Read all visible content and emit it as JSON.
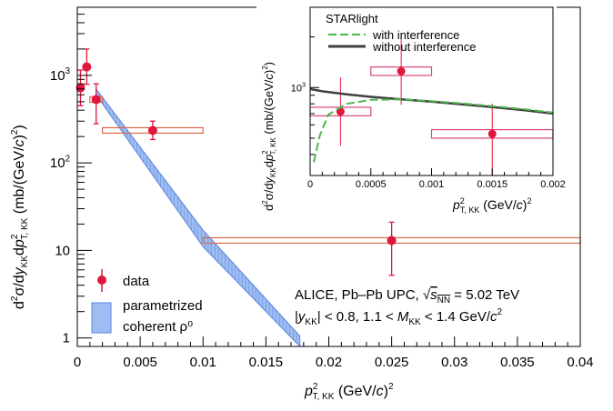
{
  "chart_data": [
    {
      "type": "scatter",
      "log_y": true,
      "xlim": [
        0,
        0.04
      ],
      "ylim": [
        0.8,
        6000
      ],
      "x_ticks": [
        "0",
        "0.005",
        "0.01",
        "0.015",
        "0.02",
        "0.025",
        "0.03",
        "0.035",
        "0.04"
      ],
      "y_ticks": [
        "1",
        "10",
        "10²",
        "10³"
      ],
      "xlabel": "p²T, KK (GeV/c)²",
      "ylabel": "d²σ/dyKKdp²T, KK (mb/(GeV/c)²)",
      "series": [
        {
          "name": "data",
          "color": "#e0163b",
          "points": [
            {
              "x": 0.00025,
              "y": 720,
              "xerr": 0.00025,
              "ylo": 450,
              "yhi": 1150
            },
            {
              "x": 0.00075,
              "y": 1250,
              "xerr": 0.00025,
              "ylo": 790,
              "yhi": 2000
            },
            {
              "x": 0.0015,
              "y": 530,
              "xerr": 0.0005,
              "ylo": 280,
              "yhi": 800
            },
            {
              "x": 0.006,
              "y": 235,
              "xerr": 0.004,
              "ylo": 185,
              "yhi": 300
            },
            {
              "x": 0.025,
              "y": 13,
              "xerr": 0.015,
              "ylo": 5.2,
              "yhi": 21
            }
          ]
        },
        {
          "name": "parametrized coherent ρ⁰",
          "color": "#3d6fd9",
          "band": [
            {
              "x": 0.0015,
              "ylo": 600,
              "yhi": 700
            },
            {
              "x": 0.01,
              "ylo": 11,
              "yhi": 17
            },
            {
              "x": 0.0177,
              "ylo": 0.8,
              "yhi": 1.05
            }
          ]
        }
      ],
      "legend": {
        "placement": "bottom-left",
        "items": [
          {
            "label": "data"
          },
          {
            "label_line1": "parametrized",
            "label_line2": "coherent ρ⁰"
          }
        ]
      },
      "annotations": [
        "ALICE, Pb–Pb UPC, √sNN = 5.02 TeV",
        "|yKK| < 0.8, 1.1 < MKK < 1.4 GeV/c²"
      ]
    },
    {
      "type": "scatter",
      "log_y": true,
      "xlim": [
        0,
        0.002
      ],
      "ylim": [
        300,
        3000
      ],
      "x_ticks": [
        "0",
        "0.0005",
        "0.001",
        "0.0015",
        "0.002"
      ],
      "y_ticks": [
        "10³"
      ],
      "xlabel": "p²T, KK (GeV/c)²",
      "ylabel": "d²σ/dyKKdp²T, KK (mb/(GeV/c)²)",
      "series": [
        {
          "name": "data",
          "color": "#e0163b",
          "points": [
            {
              "x": 0.00025,
              "y": 720,
              "xerr": 0.00025,
              "ylo": 450,
              "yhi": 1150
            },
            {
              "x": 0.00075,
              "y": 1250,
              "xerr": 0.00025,
              "ylo": 790,
              "yhi": 2000
            },
            {
              "x": 0.0015,
              "y": 530,
              "xerr": 0.0005,
              "ylo": 280,
              "yhi": 800
            }
          ]
        },
        {
          "name": "with interference",
          "color": "#4bb84b",
          "x": [
            3e-05,
            8e-05,
            0.00015,
            0.0003,
            0.0005,
            0.00075,
            0.001,
            0.00125,
            0.0015,
            0.00175,
            0.002
          ],
          "y": [
            360,
            520,
            690,
            800,
            845,
            850,
            830,
            805,
            775,
            745,
            710
          ]
        },
        {
          "name": "without interference",
          "color": "#404040",
          "x": [
            0,
            0.0001,
            0.0003,
            0.0005,
            0.00075,
            0.001,
            0.00125,
            0.0015,
            0.00175,
            0.002
          ],
          "y": [
            980,
            950,
            910,
            880,
            850,
            825,
            795,
            765,
            735,
            700
          ]
        }
      ],
      "legend": {
        "placement": "top-left",
        "title": "STARlight",
        "items": [
          {
            "label": "with interference"
          },
          {
            "label": "without interference"
          }
        ]
      }
    }
  ]
}
